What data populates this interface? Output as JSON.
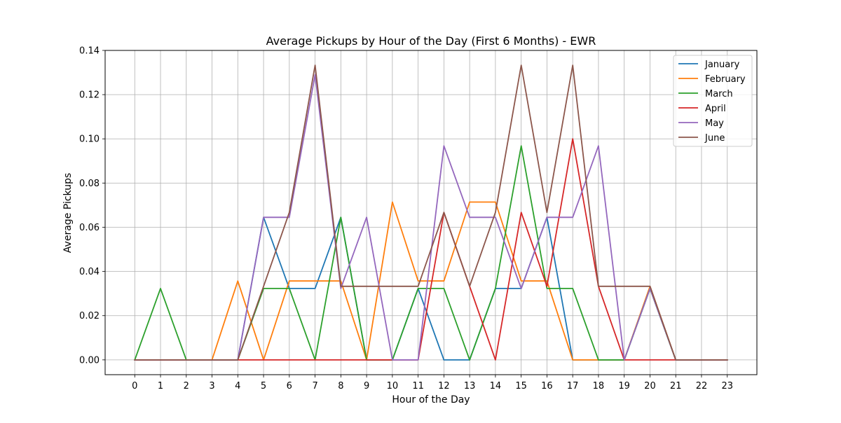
{
  "chart_data": {
    "type": "line",
    "title": "Average Pickups by Hour of the Day (First 6 Months) - EWR",
    "xlabel": "Hour of the Day",
    "ylabel": "Average Pickups",
    "x": [
      0,
      1,
      2,
      3,
      4,
      5,
      6,
      7,
      8,
      9,
      10,
      11,
      12,
      13,
      14,
      15,
      16,
      17,
      18,
      19,
      20,
      21,
      22,
      23
    ],
    "xlim": [
      -1.15,
      24.15
    ],
    "ylim": [
      -0.0067,
      0.14
    ],
    "yticks": [
      "0.00",
      "0.02",
      "0.04",
      "0.06",
      "0.08",
      "0.10",
      "0.12",
      "0.14"
    ],
    "ytick_values": [
      0,
      0.02,
      0.04,
      0.06,
      0.08,
      0.1,
      0.12,
      0.14
    ],
    "grid": true,
    "legend_position": "top-right",
    "series": [
      {
        "name": "January",
        "color": "#1f77b4",
        "values": [
          0,
          0,
          0,
          0,
          0,
          0.0645,
          0.0323,
          0.0323,
          0.0645,
          0,
          0,
          0.0323,
          0,
          0,
          0.0323,
          0.0323,
          0.0645,
          0,
          0,
          0,
          0.0323,
          0,
          0,
          0
        ]
      },
      {
        "name": "February",
        "color": "#ff7f0e",
        "values": [
          0,
          0,
          0,
          0,
          0.0357,
          0,
          0.0357,
          0.0357,
          0.0357,
          0,
          0.0714,
          0.0357,
          0.0357,
          0.0714,
          0.0714,
          0.0357,
          0.0357,
          0,
          0,
          0,
          0.0333,
          0,
          0,
          0
        ]
      },
      {
        "name": "March",
        "color": "#2ca02c",
        "values": [
          0,
          0.0323,
          0,
          0,
          0,
          0.0323,
          0.0323,
          0,
          0.0645,
          0,
          0,
          0.0323,
          0.0323,
          0,
          0.0323,
          0.0968,
          0.0323,
          0.0323,
          0,
          0,
          0.0323,
          0,
          0,
          0
        ]
      },
      {
        "name": "April",
        "color": "#d62728",
        "values": [
          0,
          0,
          0,
          0,
          0,
          0,
          0,
          0,
          0,
          0,
          0,
          0,
          0.0667,
          0.0333,
          0,
          0.0667,
          0.0333,
          0.1,
          0.0333,
          0,
          0,
          0,
          0,
          0
        ]
      },
      {
        "name": "May",
        "color": "#9467bd",
        "values": [
          0,
          0,
          0,
          0,
          0,
          0.0645,
          0.0645,
          0.129,
          0.0323,
          0.0645,
          0,
          0,
          0.0968,
          0.0645,
          0.0645,
          0.0323,
          0.0645,
          0.0645,
          0.0968,
          0,
          0.0323,
          0,
          0,
          0
        ]
      },
      {
        "name": "June",
        "color": "#8c564b",
        "values": [
          0,
          0,
          0,
          0,
          0,
          0.0333,
          0.0667,
          0.1333,
          0.0333,
          0.0333,
          0.0333,
          0.0333,
          0.0667,
          0.0333,
          0.0667,
          0.1333,
          0.0667,
          0.1333,
          0.0333,
          0.0333,
          0.0333,
          0,
          0,
          0
        ]
      }
    ]
  }
}
